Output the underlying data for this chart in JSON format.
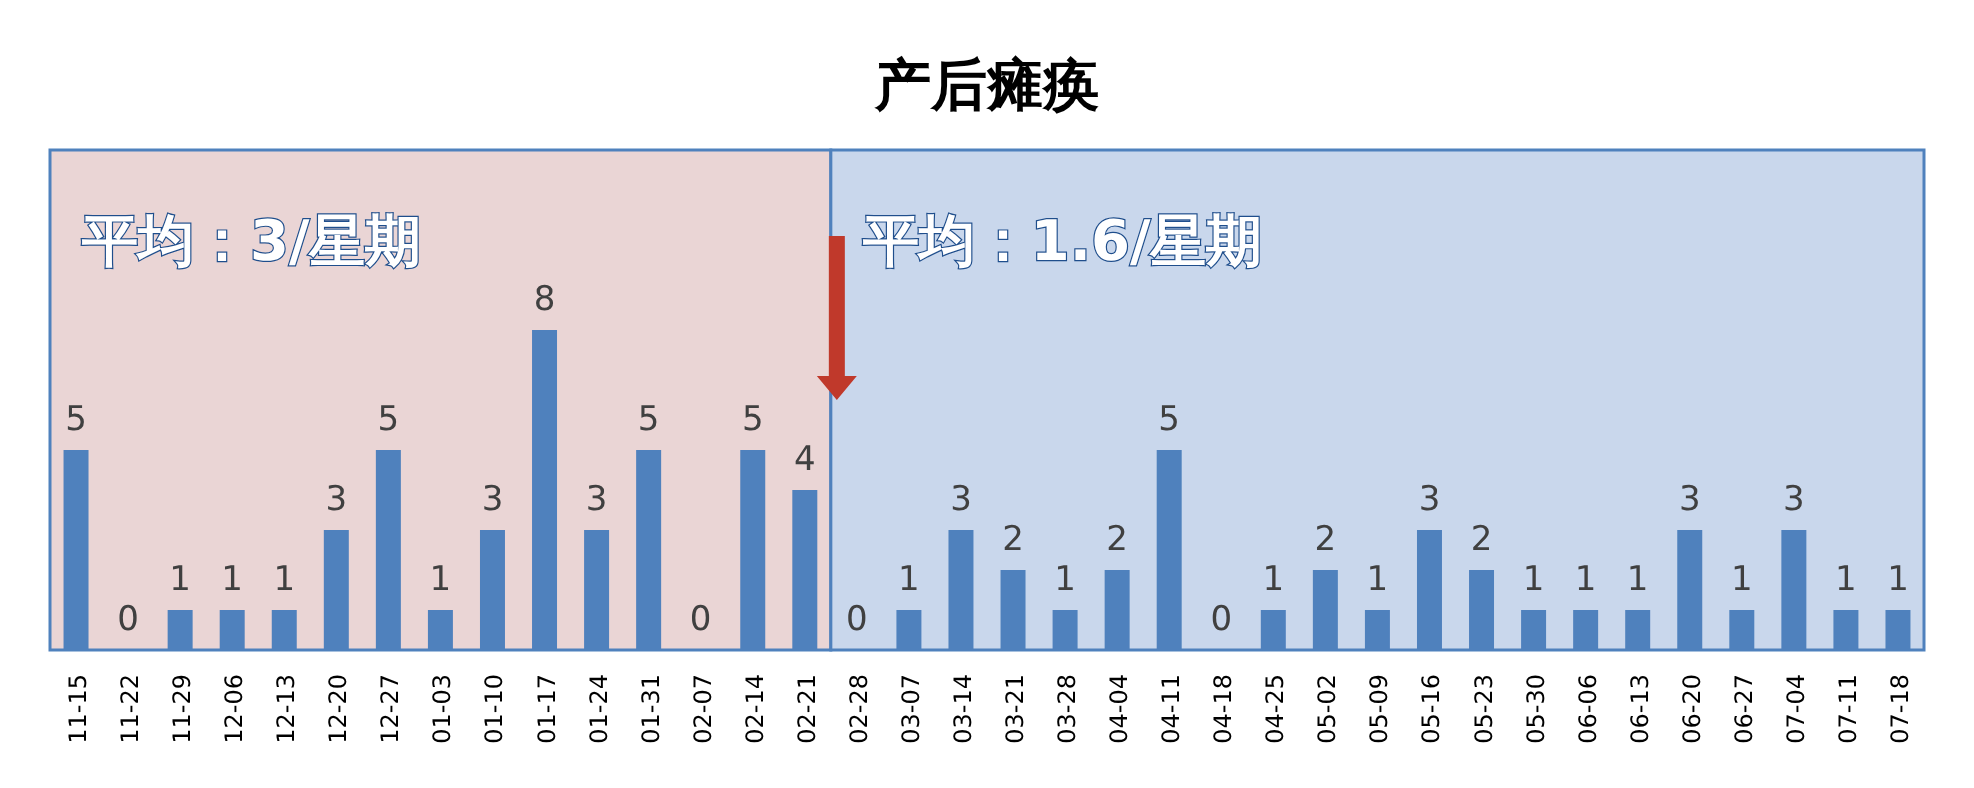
{
  "chart_data": {
    "type": "bar",
    "title": "产后瘫痪",
    "categories": [
      "11-15",
      "11-22",
      "11-29",
      "12-06",
      "12-13",
      "12-20",
      "12-27",
      "01-03",
      "01-10",
      "01-17",
      "01-24",
      "01-31",
      "02-07",
      "02-14",
      "02-21",
      "02-28",
      "03-07",
      "03-14",
      "03-21",
      "03-28",
      "04-04",
      "04-11",
      "04-18",
      "04-25",
      "05-02",
      "05-09",
      "05-16",
      "05-23",
      "05-30",
      "06-06",
      "06-13",
      "06-20",
      "06-27",
      "07-04",
      "07-11",
      "07-18"
    ],
    "values": [
      5,
      0,
      1,
      1,
      1,
      3,
      5,
      1,
      3,
      8,
      3,
      5,
      0,
      5,
      4,
      0,
      1,
      3,
      2,
      1,
      2,
      5,
      0,
      1,
      2,
      1,
      3,
      2,
      1,
      1,
      1,
      3,
      1,
      3,
      1,
      1
    ],
    "color": "#4f81bd",
    "data_labels": true,
    "bands": [
      {
        "axis": "x",
        "from": "11-15",
        "to": "02-21",
        "label": "平均：3/星期",
        "color": "#ead5d5"
      },
      {
        "axis": "x",
        "from": "02-28",
        "to": "07-18",
        "label": "平均：1.6/星期",
        "color": "#c9d7ec"
      }
    ]
  }
}
